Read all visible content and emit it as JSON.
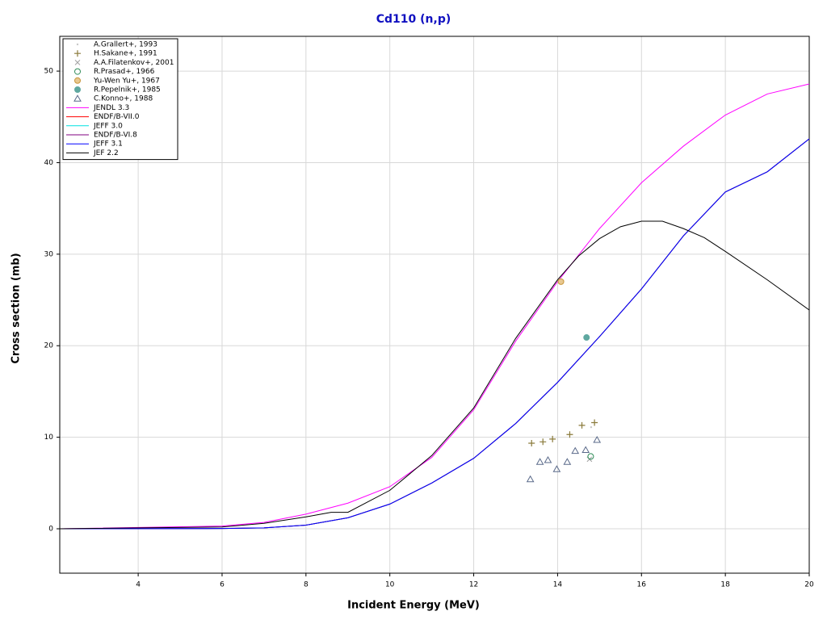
{
  "chart_data": {
    "type": "scatter-line",
    "title": "Cd110 (n,p)",
    "x_label": "Incident Energy (MeV)",
    "y_label": "Cross section (mb)",
    "xlim": [
      2.13,
      20
    ],
    "ylim": [
      -4.85,
      53.8
    ],
    "xticks": [
      4,
      6,
      8,
      10,
      12,
      14,
      16,
      18,
      20
    ],
    "yticks": [
      0,
      10,
      20,
      30,
      40,
      50
    ],
    "grid": true,
    "legend": "top-left",
    "series": [
      {
        "name": "A.Grallert+, 1993",
        "color": "#c8c8c8",
        "marker": "dot",
        "x": [
          14.8
        ],
        "values": [
          11.1
        ]
      },
      {
        "name": "H.Sakane+, 1991",
        "color": "#8a7a3a",
        "marker": "plus",
        "x": [
          13.38,
          13.65,
          13.88,
          14.29,
          14.58,
          14.88
        ],
        "values": [
          9.35,
          9.5,
          9.8,
          10.3,
          11.3,
          11.6
        ]
      },
      {
        "name": "A.A.Filatenkov+, 2001",
        "color": "#a0a0a0",
        "marker": "cross",
        "x": [
          14.76
        ],
        "values": [
          7.6
        ]
      },
      {
        "name": "R.Prasad+, 1966",
        "color": "#2e8b57",
        "marker": "circle",
        "x": [
          14.79
        ],
        "values": [
          7.9
        ]
      },
      {
        "name": "Yu-Wen Yu+, 1967",
        "color": "#c8963c",
        "marker": "ocircle",
        "x": [
          14.08
        ],
        "values": [
          27.0
        ]
      },
      {
        "name": "R.Pepelnik+, 1985",
        "color": "#5fa8a0",
        "marker": "disc",
        "x": [
          14.69
        ],
        "values": [
          20.9
        ]
      },
      {
        "name": "C.Konno+, 1988",
        "color": "#5a6a8a",
        "marker": "triangle",
        "x": [
          13.35,
          13.58,
          13.77,
          13.98,
          14.23,
          14.42,
          14.67,
          14.94
        ],
        "values": [
          5.4,
          7.3,
          7.5,
          6.5,
          7.3,
          8.5,
          8.6,
          9.7
        ]
      },
      {
        "name": "JENDL 3.3",
        "color": "#ff00ff",
        "marker": "line",
        "x": [
          2.13,
          6,
          7,
          8,
          9,
          10,
          11,
          12,
          13,
          14,
          15,
          16,
          17,
          18,
          19,
          20
        ],
        "values": [
          0,
          0.3,
          0.7,
          1.6,
          2.8,
          4.6,
          7.8,
          13,
          20.5,
          27,
          32.8,
          37.8,
          41.8,
          45.2,
          47.5,
          48.6
        ]
      },
      {
        "name": "ENDF/B-VII.0",
        "color": "#ff0000",
        "marker": "line",
        "x": [
          2.13,
          6,
          7,
          8,
          9,
          10,
          11,
          12,
          13,
          14,
          15,
          16,
          17,
          18,
          19,
          20
        ],
        "values": [
          0,
          0.03,
          0.1,
          0.4,
          1.2,
          2.7,
          5,
          7.7,
          11.5,
          16,
          21,
          26.2,
          32,
          36.8,
          39,
          42.6
        ]
      },
      {
        "name": "JEFF 3.0",
        "color": "#00e0e0",
        "marker": "line",
        "x": [
          2.13,
          6,
          7,
          8,
          9,
          10,
          11,
          12,
          13,
          14,
          15,
          16,
          17,
          18,
          19,
          20
        ],
        "values": [
          0,
          0.03,
          0.1,
          0.4,
          1.2,
          2.7,
          5,
          7.7,
          11.5,
          16,
          21,
          26.2,
          32,
          36.8,
          39,
          42.6
        ]
      },
      {
        "name": "ENDF/B-VI.8",
        "color": "#800080",
        "marker": "line",
        "x": [
          2.13,
          6,
          7,
          8,
          9,
          10,
          11,
          12,
          13,
          14,
          15,
          16,
          17,
          18,
          19,
          20
        ],
        "values": [
          0,
          0.03,
          0.1,
          0.4,
          1.2,
          2.7,
          5,
          7.7,
          11.5,
          16,
          21,
          26.2,
          32,
          36.8,
          39,
          42.6
        ]
      },
      {
        "name": "JEFF 3.1",
        "color": "#0000ff",
        "marker": "line",
        "x": [
          2.13,
          6,
          7,
          8,
          9,
          10,
          11,
          12,
          13,
          14,
          15,
          16,
          17,
          18,
          19,
          20
        ],
        "values": [
          0,
          0.03,
          0.1,
          0.4,
          1.2,
          2.7,
          5,
          7.7,
          11.5,
          16,
          21,
          26.2,
          32,
          36.8,
          39,
          42.6
        ]
      },
      {
        "name": "JEF 2.2",
        "color": "#000000",
        "marker": "line",
        "x": [
          2.13,
          6,
          7,
          8,
          8.6,
          9,
          10,
          11,
          12,
          13,
          14,
          14.5,
          15,
          15.5,
          16,
          16.5,
          17,
          17.5,
          18,
          19,
          20
        ],
        "values": [
          0,
          0.2,
          0.6,
          1.3,
          1.8,
          1.8,
          4.2,
          8,
          13.2,
          20.8,
          27.2,
          29.8,
          31.7,
          33,
          33.6,
          33.6,
          32.8,
          31.8,
          30.3,
          27.2,
          23.9
        ]
      }
    ]
  }
}
